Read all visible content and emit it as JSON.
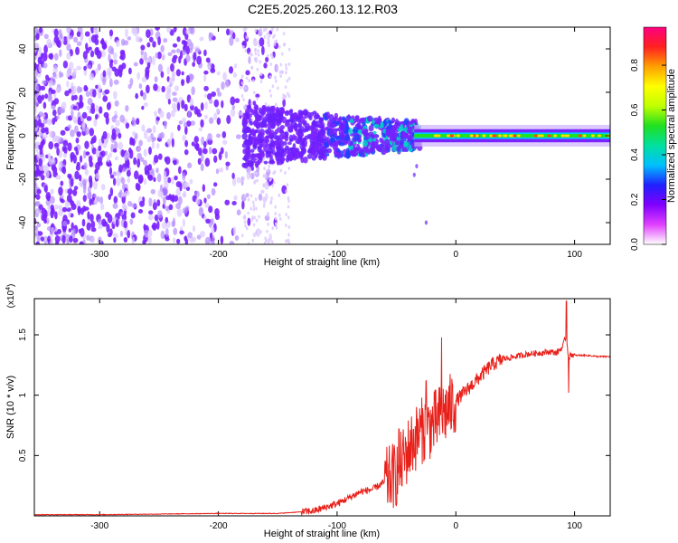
{
  "title": "C2E5.2025.260.13.12.R03",
  "colors": {
    "snr_line": "#e8201a",
    "spec_violet": "#7a22ff",
    "spec_light": "#cdb2ff",
    "frame": "#000000"
  },
  "chart_data": [
    {
      "type": "heatmap",
      "name": "spectrogram",
      "xlabel": "Height of straight line (km)",
      "ylabel": "Frequency (Hz)",
      "xlim": [
        -355,
        130
      ],
      "ylim": [
        -50,
        50
      ],
      "xticks": [
        -300,
        -200,
        -100,
        0,
        100
      ],
      "yticks": [
        -40,
        -20,
        0,
        20,
        40
      ],
      "colorbar": {
        "label": "Normalized spectral amplitude",
        "range": [
          0,
          0.97
        ],
        "ticks": [
          0.0,
          0.2,
          0.4,
          0.6,
          0.8
        ],
        "tick_labels": [
          "0.0",
          "0.2",
          "0.4",
          "0.6",
          "0.8"
        ],
        "colormap": [
          "#ffffff",
          "#e040ff",
          "#8000ff",
          "#2020ff",
          "#00c0ff",
          "#00e0a0",
          "#20e020",
          "#c0ff00",
          "#ffff00",
          "#ffa000",
          "#ff2020",
          "#ff0080"
        ]
      },
      "regions": [
        {
          "desc": "diffuse noise",
          "x": [
            -355,
            -150
          ],
          "f": [
            -50,
            50
          ],
          "amplitude": 0.15
        },
        {
          "desc": "band broadening",
          "x": [
            -180,
            -30
          ],
          "f": [
            -12,
            14
          ],
          "amplitude": 0.3
        },
        {
          "desc": "narrow carrier",
          "x": [
            -30,
            130
          ],
          "f": [
            -3,
            3
          ],
          "amplitude": 0.9
        }
      ]
    },
    {
      "type": "line",
      "name": "snr",
      "xlabel": "Height of straight line (km)",
      "ylabel": "SNR (10 * v/v)",
      "y_multiplier_label": "(x10",
      "y_multiplier_exp": "4",
      "y_multiplier_close": ")",
      "xlim": [
        -355,
        130
      ],
      "ylim": [
        0,
        1.8
      ],
      "xticks": [
        -300,
        -200,
        -100,
        0,
        100
      ],
      "yticks": [
        0.5,
        1.0,
        1.5
      ],
      "ytick_labels": [
        "0.5",
        "1",
        "1.5"
      ],
      "series": [
        {
          "name": "SNR",
          "x": [
            -355,
            -300,
            -200,
            -150,
            -120,
            -100,
            -90,
            -80,
            -70,
            -60,
            -50,
            -40,
            -30,
            -20,
            -15,
            -10,
            -5,
            0,
            10,
            20,
            30,
            40,
            50,
            60,
            70,
            80,
            85,
            90,
            93,
            95,
            97,
            100,
            110,
            120,
            130
          ],
          "y": [
            0.01,
            0.01,
            0.02,
            0.02,
            0.04,
            0.1,
            0.15,
            0.2,
            0.22,
            0.28,
            0.35,
            0.55,
            0.7,
            0.75,
            0.8,
            0.85,
            0.9,
            0.95,
            1.05,
            1.15,
            1.25,
            1.3,
            1.32,
            1.34,
            1.35,
            1.36,
            1.35,
            1.4,
            1.5,
            1.3,
            1.34,
            1.33,
            1.33,
            1.32,
            1.32
          ]
        }
      ],
      "spikes": [
        {
          "x": -12,
          "y": 1.48
        },
        {
          "x": -25,
          "y": 1.12
        },
        {
          "x": -48,
          "y": 0.72
        },
        {
          "x": 93,
          "y": 1.78
        },
        {
          "x": 95,
          "y": 1.02
        }
      ]
    }
  ]
}
